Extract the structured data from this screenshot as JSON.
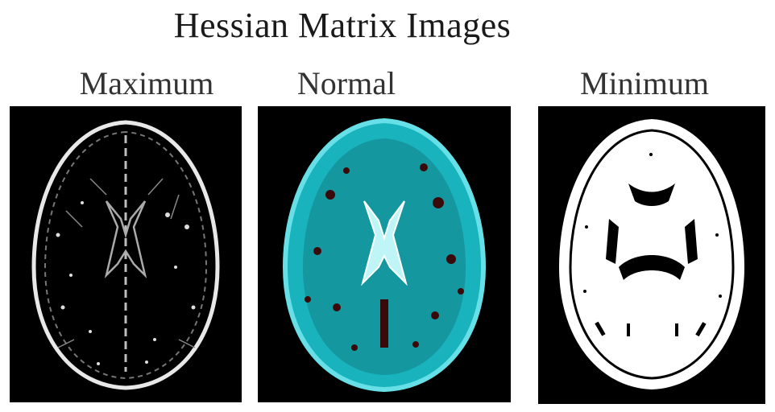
{
  "figure": {
    "title": "Hessian Matrix Images",
    "panels": [
      {
        "label": "Maximum",
        "image": "hessian-maximum-brain-mri"
      },
      {
        "label": "Normal",
        "image": "hessian-normal-brain-mri"
      },
      {
        "label": "Minimum",
        "image": "hessian-minimum-brain-mri"
      }
    ]
  },
  "colors": {
    "background": "#ffffff",
    "panel_background": "#000000",
    "normal_tint": "#19b3bd",
    "maximum_edge": "#e8e8e8",
    "minimum_fill": "#ffffff"
  }
}
